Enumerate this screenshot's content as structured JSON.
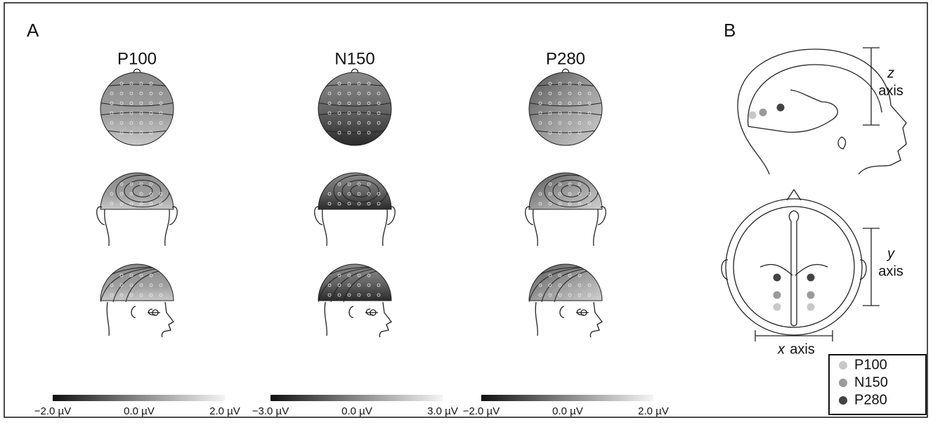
{
  "panel_a": {
    "label": "A",
    "columns": [
      {
        "title": "P100",
        "colorbar": {
          "min": "−2.0 µV",
          "mid": "0.0 µV",
          "max": "2.0 µV"
        }
      },
      {
        "title": "N150",
        "colorbar": {
          "min": "−3.0 µV",
          "mid": "0.0 µV",
          "max": "3.0 µV"
        }
      },
      {
        "title": "P280",
        "colorbar": {
          "min": "−2.0 µV",
          "mid": "0.0 µV",
          "max": "2.0 µV"
        }
      }
    ]
  },
  "panel_b": {
    "label": "B",
    "z_axis": {
      "variable": "z",
      "word": "axis"
    },
    "y_axis": {
      "variable": "y",
      "word": "axis"
    },
    "x_axis": {
      "variable": "x",
      "word": "axis"
    },
    "legend": [
      {
        "name": "P100",
        "color": "#c8c8c8"
      },
      {
        "name": "N150",
        "color": "#9a9a9a"
      },
      {
        "name": "P280",
        "color": "#444444"
      }
    ]
  }
}
